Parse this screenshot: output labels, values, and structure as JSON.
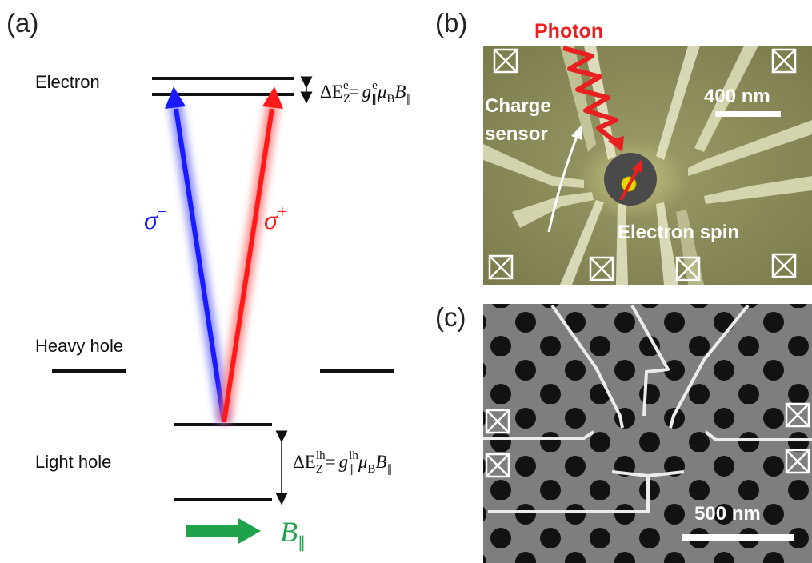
{
  "panels": {
    "a": {
      "label": "(a)",
      "levels": {
        "electron": "Electron",
        "heavy_hole": "Heavy hole",
        "light_hole": "Light hole"
      },
      "transitions": {
        "sigma_minus": {
          "symbol": "σ",
          "superscript": "−",
          "color": "#1a1aff"
        },
        "sigma_plus": {
          "symbol": "σ",
          "superscript": "+",
          "color": "#ff1a1a"
        }
      },
      "zeeman_electron": {
        "delta": "ΔE",
        "sub": "Z",
        "sup": "e",
        "eq": "=",
        "g": "g",
        "g_sub": "∥",
        "g_sup": "e",
        "mu": "μ",
        "mu_sub": "B",
        "b": "B",
        "b_sub": "∥"
      },
      "zeeman_light_hole": {
        "delta": "ΔE",
        "sub": "Z",
        "sup": "lh",
        "eq": "=",
        "g": "g",
        "g_sub": "∥",
        "g_sup": "lh",
        "mu": "μ",
        "mu_sub": "B",
        "b": "B",
        "b_sub": "∥"
      },
      "field": {
        "symbol": "B",
        "sub": "∥",
        "color": "#1fa34a"
      }
    },
    "b": {
      "label": "(b)",
      "photon": "Photon",
      "charge_sensor_line1": "Charge",
      "charge_sensor_line2": "sensor",
      "scale_bar": "400 nm",
      "electron_spin": "Electron spin"
    },
    "c": {
      "label": "(c)",
      "scale_bar": "500 nm"
    }
  },
  "colors": {
    "sem_b_bg": "#8a8a5a",
    "sem_c_bg": "#7e7e7e",
    "gate": "#e6e6c8",
    "photon_red": "#e8201f"
  }
}
